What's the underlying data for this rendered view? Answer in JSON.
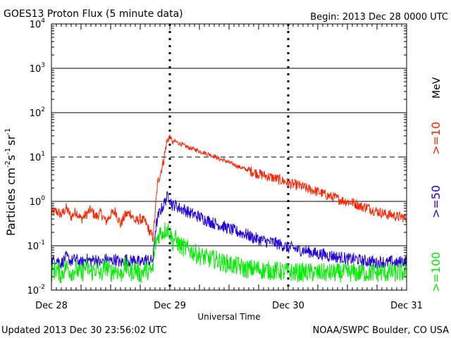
{
  "header": {
    "title": "GOES13 Proton Flux (5 minute data)",
    "begin": "Begin: 2013 Dec 28 0000 UTC"
  },
  "footer": {
    "updated": "Updated 2013 Dec 30 23:56:02 UTC",
    "source": "NOAA/SWPC Boulder, CO USA"
  },
  "chart_data": {
    "type": "line",
    "title": "GOES13 Proton Flux (5 minute data)",
    "xlabel": "Universal Time",
    "ylabel": "Particles cm-2 s-1 sr-1",
    "yscale": "log",
    "ylim": [
      0.01,
      10000
    ],
    "xlim_hours": [
      0,
      72
    ],
    "x_ticks": [
      {
        "hour": 0,
        "label": "Dec 28"
      },
      {
        "hour": 24,
        "label": "Dec 29"
      },
      {
        "hour": 48,
        "label": "Dec 30"
      },
      {
        "hour": 72,
        "label": "Dec 31"
      }
    ],
    "y_ticks": [
      {
        "value": 0.01,
        "base": "10",
        "exp": "-2"
      },
      {
        "value": 0.1,
        "base": "10",
        "exp": "-1"
      },
      {
        "value": 1,
        "base": "10",
        "exp": "0"
      },
      {
        "value": 10,
        "base": "10",
        "exp": "1"
      },
      {
        "value": 100,
        "base": "10",
        "exp": "2"
      },
      {
        "value": 1000,
        "base": "10",
        "exp": "3"
      },
      {
        "value": 10000,
        "base": "10",
        "exp": "4"
      }
    ],
    "ylabel_parts": {
      "main": "Particles cm",
      "e1": "-2",
      "s": "s",
      "e2": "-1",
      "sr": "sr",
      "e3": "-1"
    },
    "units_label": "MeV",
    "series": [
      {
        "name": ">=10",
        "color": "#ff2200",
        "points": [
          [
            0,
            0.55
          ],
          [
            1,
            0.6
          ],
          [
            2,
            0.5
          ],
          [
            3,
            0.7
          ],
          [
            4,
            0.45
          ],
          [
            5,
            0.6
          ],
          [
            6,
            0.4
          ],
          [
            7,
            0.5
          ],
          [
            8,
            0.65
          ],
          [
            9,
            0.45
          ],
          [
            10,
            0.55
          ],
          [
            11,
            0.35
          ],
          [
            12,
            0.5
          ],
          [
            13,
            0.6
          ],
          [
            14,
            0.3
          ],
          [
            15,
            0.5
          ],
          [
            16,
            0.55
          ],
          [
            17,
            0.35
          ],
          [
            18,
            0.4
          ],
          [
            19,
            0.35
          ],
          [
            20,
            0.2
          ],
          [
            20.6,
            0.15
          ],
          [
            21,
            0.5
          ],
          [
            21.5,
            2.5
          ],
          [
            22,
            4
          ],
          [
            22.7,
            8
          ],
          [
            23.3,
            20
          ],
          [
            23.8,
            28
          ],
          [
            24.2,
            27
          ],
          [
            24.6,
            21
          ],
          [
            25,
            23
          ],
          [
            26,
            20
          ],
          [
            27,
            18
          ],
          [
            28,
            16
          ],
          [
            29,
            15
          ],
          [
            30,
            13.5
          ],
          [
            31,
            12.5
          ],
          [
            32,
            11.5
          ],
          [
            33,
            10.5
          ],
          [
            34,
            9
          ],
          [
            35,
            8.5
          ],
          [
            36,
            7.5
          ],
          [
            37,
            6.8
          ],
          [
            38,
            6
          ],
          [
            39,
            5.5
          ],
          [
            40,
            5
          ],
          [
            41,
            4.6
          ],
          [
            42,
            4.2
          ],
          [
            43,
            3.9
          ],
          [
            44,
            3.6
          ],
          [
            45,
            3.4
          ],
          [
            46,
            3.1
          ],
          [
            47,
            2.9
          ],
          [
            48,
            2.6
          ],
          [
            49,
            2.4
          ],
          [
            50,
            2.3
          ],
          [
            51,
            2.1
          ],
          [
            52,
            1.9
          ],
          [
            53,
            1.8
          ],
          [
            54,
            1.65
          ],
          [
            55,
            1.5
          ],
          [
            56,
            1.35
          ],
          [
            57,
            1.25
          ],
          [
            58,
            1.15
          ],
          [
            59,
            1.05
          ],
          [
            60,
            1.0
          ],
          [
            61,
            0.95
          ],
          [
            62,
            0.85
          ],
          [
            63,
            0.75
          ],
          [
            64,
            0.75
          ],
          [
            65,
            0.65
          ],
          [
            66,
            0.6
          ],
          [
            67,
            0.55
          ],
          [
            68,
            0.5
          ],
          [
            69,
            0.5
          ],
          [
            70,
            0.45
          ],
          [
            71,
            0.45
          ],
          [
            72,
            0.4
          ]
        ]
      },
      {
        "name": ">=50",
        "color": "#2200dd",
        "points": [
          [
            0,
            0.045
          ],
          [
            1,
            0.05
          ],
          [
            2,
            0.04
          ],
          [
            3,
            0.055
          ],
          [
            4,
            0.045
          ],
          [
            5,
            0.05
          ],
          [
            6,
            0.04
          ],
          [
            7,
            0.05
          ],
          [
            8,
            0.045
          ],
          [
            9,
            0.05
          ],
          [
            10,
            0.04
          ],
          [
            11,
            0.05
          ],
          [
            12,
            0.045
          ],
          [
            13,
            0.05
          ],
          [
            14,
            0.04
          ],
          [
            15,
            0.05
          ],
          [
            16,
            0.045
          ],
          [
            17,
            0.05
          ],
          [
            18,
            0.04
          ],
          [
            19,
            0.05
          ],
          [
            20,
            0.045
          ],
          [
            20.6,
            0.05
          ],
          [
            21,
            0.2
          ],
          [
            21.5,
            0.4
          ],
          [
            22,
            0.6
          ],
          [
            22.7,
            0.8
          ],
          [
            23.3,
            1.2
          ],
          [
            23.8,
            1.3
          ],
          [
            24.2,
            1.0
          ],
          [
            24.6,
            0.8
          ],
          [
            25,
            0.85
          ],
          [
            26,
            0.7
          ],
          [
            27,
            0.65
          ],
          [
            28,
            0.55
          ],
          [
            29,
            0.5
          ],
          [
            30,
            0.45
          ],
          [
            31,
            0.4
          ],
          [
            32,
            0.36
          ],
          [
            33,
            0.32
          ],
          [
            34,
            0.3
          ],
          [
            35,
            0.27
          ],
          [
            36,
            0.24
          ],
          [
            37,
            0.22
          ],
          [
            38,
            0.2
          ],
          [
            39,
            0.19
          ],
          [
            40,
            0.17
          ],
          [
            41,
            0.15
          ],
          [
            42,
            0.14
          ],
          [
            43,
            0.13
          ],
          [
            44,
            0.12
          ],
          [
            45,
            0.12
          ],
          [
            46,
            0.11
          ],
          [
            47,
            0.1
          ],
          [
            48,
            0.09
          ],
          [
            49,
            0.09
          ],
          [
            50,
            0.08
          ],
          [
            51,
            0.08
          ],
          [
            52,
            0.075
          ],
          [
            53,
            0.07
          ],
          [
            54,
            0.065
          ],
          [
            55,
            0.065
          ],
          [
            56,
            0.06
          ],
          [
            57,
            0.06
          ],
          [
            58,
            0.055
          ],
          [
            59,
            0.055
          ],
          [
            60,
            0.05
          ],
          [
            61,
            0.05
          ],
          [
            62,
            0.05
          ],
          [
            63,
            0.045
          ],
          [
            64,
            0.045
          ],
          [
            65,
            0.045
          ],
          [
            66,
            0.04
          ],
          [
            67,
            0.045
          ],
          [
            68,
            0.04
          ],
          [
            69,
            0.045
          ],
          [
            70,
            0.04
          ],
          [
            71,
            0.045
          ],
          [
            72,
            0.045
          ]
        ]
      },
      {
        "name": ">=100",
        "color": "#00ee00",
        "points": [
          [
            0,
            0.025
          ],
          [
            1,
            0.03
          ],
          [
            2,
            0.022
          ],
          [
            3,
            0.035
          ],
          [
            4,
            0.025
          ],
          [
            5,
            0.03
          ],
          [
            6,
            0.022
          ],
          [
            7,
            0.035
          ],
          [
            8,
            0.025
          ],
          [
            9,
            0.03
          ],
          [
            10,
            0.022
          ],
          [
            11,
            0.035
          ],
          [
            12,
            0.025
          ],
          [
            13,
            0.03
          ],
          [
            14,
            0.022
          ],
          [
            15,
            0.035
          ],
          [
            16,
            0.025
          ],
          [
            17,
            0.03
          ],
          [
            18,
            0.022
          ],
          [
            19,
            0.03
          ],
          [
            20,
            0.025
          ],
          [
            20.6,
            0.03
          ],
          [
            21,
            0.1
          ],
          [
            21.5,
            0.15
          ],
          [
            22,
            0.2
          ],
          [
            22.7,
            0.2
          ],
          [
            23.3,
            0.25
          ],
          [
            23.8,
            0.22
          ],
          [
            24.2,
            0.18
          ],
          [
            24.6,
            0.12
          ],
          [
            25,
            0.15
          ],
          [
            26,
            0.1
          ],
          [
            27,
            0.09
          ],
          [
            28,
            0.08
          ],
          [
            29,
            0.07
          ],
          [
            30,
            0.06
          ],
          [
            31,
            0.055
          ],
          [
            32,
            0.05
          ],
          [
            33,
            0.05
          ],
          [
            34,
            0.045
          ],
          [
            35,
            0.04
          ],
          [
            36,
            0.04
          ],
          [
            37,
            0.035
          ],
          [
            38,
            0.035
          ],
          [
            39,
            0.03
          ],
          [
            40,
            0.03
          ],
          [
            41,
            0.03
          ],
          [
            42,
            0.03
          ],
          [
            43,
            0.028
          ],
          [
            44,
            0.028
          ],
          [
            45,
            0.027
          ],
          [
            46,
            0.027
          ],
          [
            47,
            0.026
          ],
          [
            48,
            0.026
          ],
          [
            49,
            0.025
          ],
          [
            50,
            0.025
          ],
          [
            51,
            0.025
          ],
          [
            52,
            0.025
          ],
          [
            53,
            0.025
          ],
          [
            54,
            0.024
          ],
          [
            55,
            0.025
          ],
          [
            56,
            0.024
          ],
          [
            57,
            0.025
          ],
          [
            58,
            0.024
          ],
          [
            59,
            0.025
          ],
          [
            60,
            0.024
          ],
          [
            61,
            0.025
          ],
          [
            62,
            0.024
          ],
          [
            63,
            0.025
          ],
          [
            64,
            0.024
          ],
          [
            65,
            0.025
          ],
          [
            66,
            0.024
          ],
          [
            67,
            0.025
          ],
          [
            68,
            0.024
          ],
          [
            69,
            0.025
          ],
          [
            70,
            0.024
          ],
          [
            71,
            0.025
          ],
          [
            72,
            0.024
          ]
        ]
      }
    ]
  }
}
